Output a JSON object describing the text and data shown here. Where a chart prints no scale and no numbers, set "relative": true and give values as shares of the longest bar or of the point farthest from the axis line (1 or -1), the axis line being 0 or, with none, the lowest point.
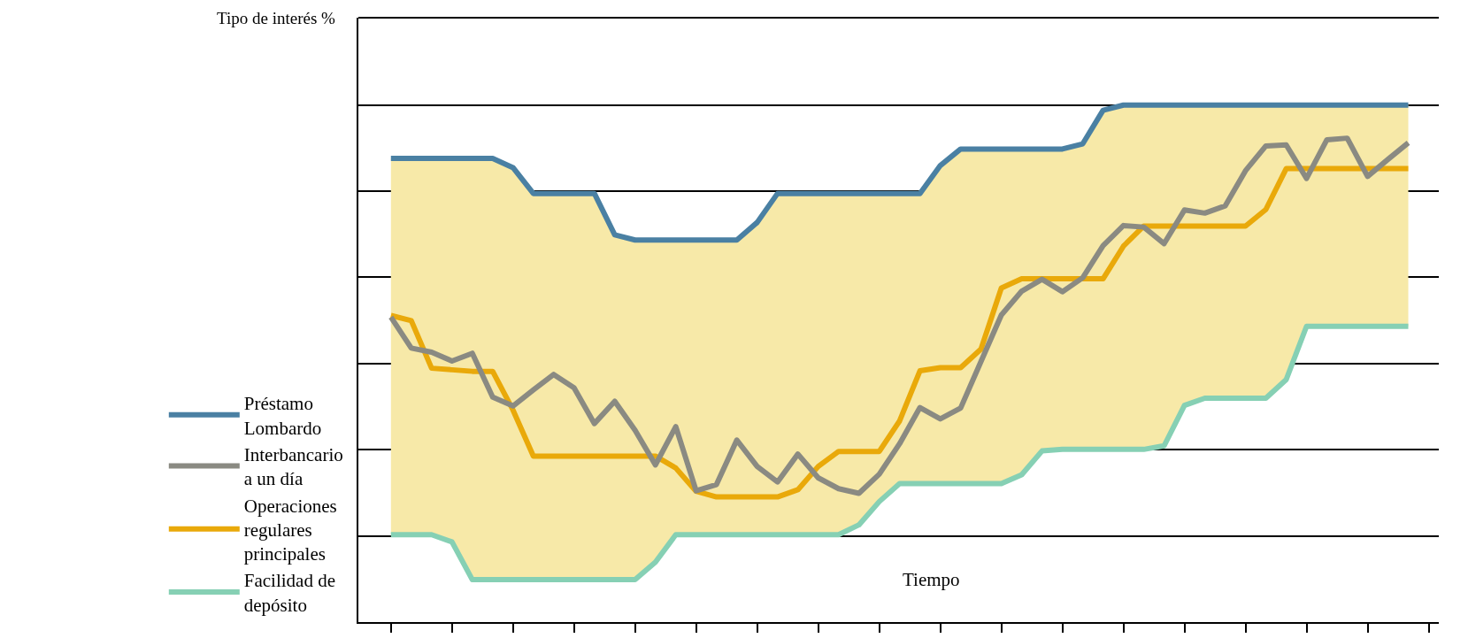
{
  "chart_data": {
    "type": "line",
    "relative": true,
    "ylabel": "Tipo de interés %",
    "xlabel": "Tiempo",
    "categories": [
      null,
      null,
      null,
      null,
      null,
      null,
      null,
      null,
      null,
      null,
      null,
      null,
      null,
      null,
      null,
      null,
      null,
      null,
      null,
      null,
      null,
      null,
      null,
      null,
      null,
      null,
      null,
      null,
      null,
      null,
      null,
      null,
      null,
      null,
      null,
      null,
      null,
      null,
      null,
      null,
      null,
      null,
      null,
      null,
      null,
      null,
      null,
      null,
      null,
      null,
      null
    ],
    "grid": "y",
    "legend": "left",
    "series": [
      {
        "name": "Facilidad de\ndepósito",
        "color": "#86d0b4",
        "values": [
          0.169,
          0.169,
          0.169,
          0.155,
          0.082,
          0.082,
          0.082,
          0.082,
          0.082,
          0.082,
          0.082,
          0.082,
          0.082,
          0.116,
          0.169,
          0.169,
          0.169,
          0.169,
          0.169,
          0.169,
          0.169,
          0.169,
          0.169,
          0.188,
          0.233,
          0.268,
          0.268,
          0.268,
          0.268,
          0.268,
          0.268,
          0.285,
          0.331,
          0.334,
          0.334,
          0.334,
          0.334,
          0.334,
          0.341,
          0.419,
          0.433,
          0.433,
          0.433,
          0.433,
          0.469,
          0.572,
          0.572,
          0.572,
          0.572,
          0.572,
          0.572
        ]
      },
      {
        "type": "area",
        "color": "#f7e9a8",
        "values": [
          0.897,
          0.897,
          0.897,
          0.897,
          0.897,
          0.897,
          0.879,
          0.829,
          0.829,
          0.829,
          0.829,
          0.749,
          0.739,
          0.739,
          0.739,
          0.739,
          0.739,
          0.739,
          0.773,
          0.829,
          0.829,
          0.829,
          0.829,
          0.829,
          0.829,
          0.829,
          0.829,
          0.883,
          0.915,
          0.915,
          0.915,
          0.915,
          0.915,
          0.915,
          0.925,
          0.99,
          1.0,
          1.0,
          1.0,
          1.0,
          1.0,
          1.0,
          1.0,
          1.0,
          1.0,
          1.0,
          1.0,
          1.0,
          1.0,
          1.0,
          1.0
        ]
      },
      {
        "name": "Operaciones\nregulares\nprincipales",
        "color": "#e9a90a",
        "values": [
          0.593,
          0.583,
          0.491,
          0.488,
          0.485,
          0.485,
          0.41,
          0.321,
          0.321,
          0.321,
          0.321,
          0.321,
          0.321,
          0.321,
          0.298,
          0.253,
          0.242,
          0.242,
          0.242,
          0.242,
          0.256,
          0.301,
          0.33,
          0.33,
          0.33,
          0.389,
          0.486,
          0.492,
          0.492,
          0.528,
          0.646,
          0.664,
          0.664,
          0.664,
          0.664,
          0.664,
          0.727,
          0.766,
          0.766,
          0.766,
          0.766,
          0.766,
          0.766,
          0.798,
          0.877,
          0.877,
          0.877,
          0.877,
          0.877,
          0.877,
          0.877
        ]
      },
      {
        "name": "Interbancario\na un día",
        "color": "#8a8a82",
        "values": [
          0.59,
          0.53,
          0.522,
          0.505,
          0.52,
          0.435,
          0.418,
          0.449,
          0.479,
          0.453,
          0.384,
          0.427,
          0.371,
          0.304,
          0.378,
          0.254,
          0.266,
          0.352,
          0.301,
          0.271,
          0.325,
          0.279,
          0.258,
          0.249,
          0.286,
          0.345,
          0.415,
          0.393,
          0.414,
          0.504,
          0.594,
          0.64,
          0.663,
          0.639,
          0.666,
          0.728,
          0.767,
          0.764,
          0.732,
          0.797,
          0.791,
          0.805,
          0.873,
          0.921,
          0.923,
          0.858,
          0.933,
          0.936,
          0.862,
          0.895,
          0.927
        ]
      },
      {
        "name": "Préstamo\nLombardo",
        "color": "#4a80a3",
        "values": [
          0.897,
          0.897,
          0.897,
          0.897,
          0.897,
          0.897,
          0.879,
          0.829,
          0.829,
          0.829,
          0.829,
          0.749,
          0.739,
          0.739,
          0.739,
          0.739,
          0.739,
          0.739,
          0.773,
          0.829,
          0.829,
          0.829,
          0.829,
          0.829,
          0.829,
          0.829,
          0.829,
          0.883,
          0.915,
          0.915,
          0.915,
          0.915,
          0.915,
          0.915,
          0.925,
          0.99,
          1.0,
          1.0,
          1.0,
          1.0,
          1.0,
          1.0,
          1.0,
          1.0,
          1.0,
          1.0,
          1.0,
          1.0,
          1.0,
          1.0,
          1.0
        ]
      }
    ]
  }
}
